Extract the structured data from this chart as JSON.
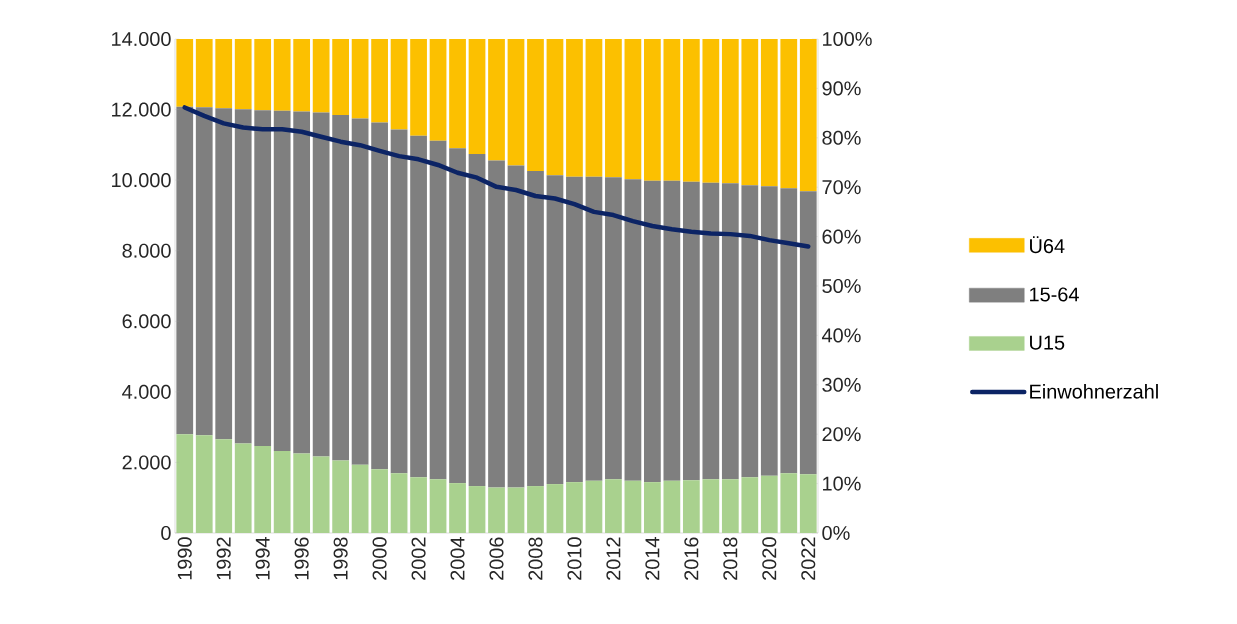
{
  "chart_data": {
    "type": "bar",
    "stacked": true,
    "categories": [
      "1990",
      null,
      "1992",
      null,
      "1994",
      null,
      "1996",
      null,
      "1998",
      null,
      "2000",
      null,
      "2002",
      null,
      "2004",
      null,
      "2006",
      null,
      "2008",
      null,
      "2010",
      null,
      "2012",
      null,
      "2014",
      null,
      "2016",
      null,
      "2018",
      null,
      "2020",
      null,
      "2022"
    ],
    "series": [
      {
        "name": "U15",
        "color": "#a9d18e",
        "axis": "y2",
        "values": [
          20.0,
          19.8,
          19.0,
          18.1,
          17.6,
          16.6,
          16.1,
          15.5,
          14.7,
          13.8,
          12.9,
          12.1,
          11.3,
          10.9,
          10.1,
          9.5,
          9.2,
          9.2,
          9.5,
          9.9,
          10.3,
          10.6,
          10.9,
          10.6,
          10.3,
          10.6,
          10.7,
          10.9,
          10.9,
          11.3,
          11.6,
          12.1,
          11.9
        ]
      },
      {
        "name": "15-64",
        "color": "#7f7f7f",
        "axis": "y2",
        "values": [
          66.3,
          66.4,
          67.0,
          67.7,
          68.0,
          68.9,
          69.2,
          69.6,
          69.9,
          70.1,
          70.2,
          69.6,
          69.1,
          68.5,
          67.8,
          67.2,
          66.2,
          65.2,
          63.8,
          62.5,
          61.8,
          61.5,
          61.1,
          61.0,
          61.0,
          60.7,
          60.4,
          60.0,
          59.9,
          59.1,
          58.6,
          57.7,
          57.3
        ]
      },
      {
        "name": "Ü64",
        "color": "#fcc000",
        "axis": "y2",
        "values": [
          13.7,
          13.8,
          14.0,
          14.2,
          14.4,
          14.5,
          14.7,
          14.9,
          15.4,
          16.1,
          16.9,
          18.3,
          19.6,
          20.6,
          22.1,
          23.3,
          24.6,
          25.6,
          26.7,
          27.6,
          27.9,
          27.9,
          28.0,
          28.4,
          28.7,
          28.7,
          28.9,
          29.1,
          29.2,
          29.6,
          29.8,
          30.2,
          30.8
        ]
      },
      {
        "name": "Einwohnerzahl",
        "type": "line",
        "color": "#0c2465",
        "axis": "y",
        "values": [
          12060,
          11820,
          11610,
          11490,
          11440,
          11440,
          11370,
          11230,
          11090,
          10990,
          10830,
          10680,
          10590,
          10430,
          10210,
          10070,
          9810,
          9720,
          9550,
          9480,
          9320,
          9100,
          9010,
          8840,
          8700,
          8610,
          8540,
          8490,
          8470,
          8420,
          8300,
          8210,
          8120
        ]
      }
    ],
    "ylim": [
      0,
      14000
    ],
    "yticks": [
      {
        "value": 0,
        "label": "0"
      },
      {
        "value": 2000,
        "label": "2.000"
      },
      {
        "value": 4000,
        "label": "4.000"
      },
      {
        "value": 6000,
        "label": "6.000"
      },
      {
        "value": 8000,
        "label": "8.000"
      },
      {
        "value": 10000,
        "label": "10.000"
      },
      {
        "value": 12000,
        "label": "12.000"
      },
      {
        "value": 14000,
        "label": "14.000"
      }
    ],
    "y2lim": [
      0,
      100
    ],
    "y2ticks": [
      {
        "value": 0,
        "label": "0%"
      },
      {
        "value": 10,
        "label": "10%"
      },
      {
        "value": 20,
        "label": "20%"
      },
      {
        "value": 30,
        "label": "30%"
      },
      {
        "value": 40,
        "label": "40%"
      },
      {
        "value": 50,
        "label": "50%"
      },
      {
        "value": 60,
        "label": "60%"
      },
      {
        "value": 70,
        "label": "70%"
      },
      {
        "value": 80,
        "label": "80%"
      },
      {
        "value": 90,
        "label": "90%"
      },
      {
        "value": 100,
        "label": "100%"
      }
    ],
    "legend": "right"
  }
}
